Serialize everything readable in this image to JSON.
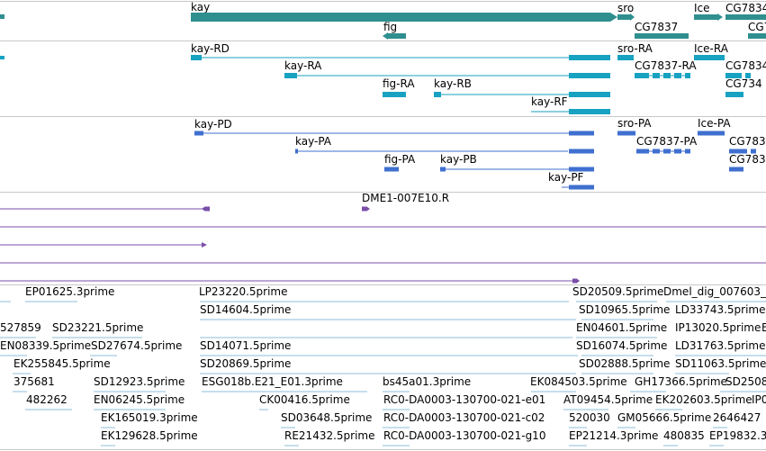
{
  "colors": {
    "gene": "#2f8f8f",
    "mrna": "#17a2c2",
    "protein": "#3f6fcf",
    "clone": "#7a4fa8",
    "est": "#8cbcd8",
    "divider": "#c8c8c8"
  },
  "tracks": {
    "genes": {
      "features": [
        {
          "name": "gene-kay-bar",
          "label": "kay"
        },
        {
          "name": "gene-sro-bar",
          "label": "sro"
        },
        {
          "name": "gene-ice-bar",
          "label": "Ice"
        },
        {
          "name": "gene-cg7834-bar",
          "label": "CG7834"
        },
        {
          "name": "gene-fig-bar",
          "label": "fig"
        },
        {
          "name": "gene-cg7837-bar",
          "label": "CG7837"
        },
        {
          "name": "gene-cg7-bar",
          "label": "CG7"
        }
      ]
    },
    "transcripts": {
      "features": [
        {
          "name": "transcript-kay-rd",
          "label": "kay-RD"
        },
        {
          "name": "transcript-kay-ra",
          "label": "kay-RA"
        },
        {
          "name": "transcript-fig-ra",
          "label": "fig-RA"
        },
        {
          "name": "transcript-kay-rb",
          "label": "kay-RB"
        },
        {
          "name": "transcript-kay-rf",
          "label": "kay-RF"
        },
        {
          "name": "transcript-sro-ra",
          "label": "sro-RA"
        },
        {
          "name": "transcript-ice-ra",
          "label": "Ice-RA"
        },
        {
          "name": "transcript-cg7837-ra",
          "label": "CG7837-RA"
        },
        {
          "name": "transcript-cg7834-a",
          "label": "CG7834"
        },
        {
          "name": "transcript-cg7834-b",
          "label": "CG734"
        }
      ]
    },
    "proteins": {
      "features": [
        {
          "name": "protein-kay-pd",
          "label": "kay-PD"
        },
        {
          "name": "protein-kay-pa",
          "label": "kay-PA"
        },
        {
          "name": "protein-fig-pa",
          "label": "fig-PA"
        },
        {
          "name": "protein-kay-pb",
          "label": "kay-PB"
        },
        {
          "name": "protein-kay-pf",
          "label": "kay-PF"
        },
        {
          "name": "protein-sro-pa",
          "label": "sro-PA"
        },
        {
          "name": "protein-ice-pa",
          "label": "Ice-PA"
        },
        {
          "name": "protein-cg7837-pa",
          "label": "CG7837-PA"
        },
        {
          "name": "protein-cg783-a",
          "label": "CG783"
        },
        {
          "name": "protein-cg783-b",
          "label": "CG783"
        }
      ]
    },
    "clones": {
      "features": [
        {
          "name": "clone-row-1",
          "label": ""
        },
        {
          "name": "clone-dme1",
          "label": "DME1-007E10.R"
        },
        {
          "name": "clone-row-3",
          "label": ""
        },
        {
          "name": "clone-row-4",
          "label": ""
        },
        {
          "name": "clone-row-5",
          "label": ""
        },
        {
          "name": "clone-row-6",
          "label": ""
        }
      ]
    },
    "ests": {
      "features": [
        {
          "label": "EP01625.3prime"
        },
        {
          "label": "LP23220.5prime"
        },
        {
          "label": "SD20509.5prime"
        },
        {
          "label": "Dmel_dig_007603_"
        },
        {
          "label": "SD14604.5prime"
        },
        {
          "label": "SD10965.5prime"
        },
        {
          "label": "527859"
        },
        {
          "label": "SD23221.5prime"
        },
        {
          "label": "EN04601.5prime"
        },
        {
          "label": "LD33743.5prime"
        },
        {
          "label": "EN08339.5prime"
        },
        {
          "label": "SD27674.5prime"
        },
        {
          "label": "SD14071.5prime"
        },
        {
          "label": "IP13020.5prime"
        },
        {
          "label": "E"
        },
        {
          "label": "SD16074.5prime"
        },
        {
          "label": "LD31763.5prime"
        },
        {
          "label": "EK255845.5prime"
        },
        {
          "label": "SD20869.5prime"
        },
        {
          "label": "SD02888.5prime"
        },
        {
          "label": "SD11063.5prime"
        },
        {
          "label": "375681"
        },
        {
          "label": "SD12923.5prime"
        },
        {
          "label": "ESG018b.E21_E01.3prime"
        },
        {
          "label": "bs45a01.3prime"
        },
        {
          "label": "EK084503.5prime"
        },
        {
          "label": "GH17366.5prime"
        },
        {
          "label": "SD2508"
        },
        {
          "label": "482262"
        },
        {
          "label": "EN06245.5prime"
        },
        {
          "label": "CK00416.5prime"
        },
        {
          "label": "RC0-DA0003-130700-021-e01"
        },
        {
          "label": "AT09454.5prime"
        },
        {
          "label": "EK202603.5prime"
        },
        {
          "label": "IP0"
        },
        {
          "label": "EK165019.3prime"
        },
        {
          "label": "SD03648.5prime"
        },
        {
          "label": "RC0-DA0003-130700-021-c02"
        },
        {
          "label": "520030"
        },
        {
          "label": "GM05666.5prime"
        },
        {
          "label": "2646427"
        },
        {
          "label": "EK129628.5prime"
        },
        {
          "label": "RE21432.5prime"
        },
        {
          "label": "RC0-DA0003-130700-021-g10"
        },
        {
          "label": "EP21214.3prime"
        },
        {
          "label": "480835"
        },
        {
          "label": "EP19832.3"
        }
      ]
    }
  }
}
